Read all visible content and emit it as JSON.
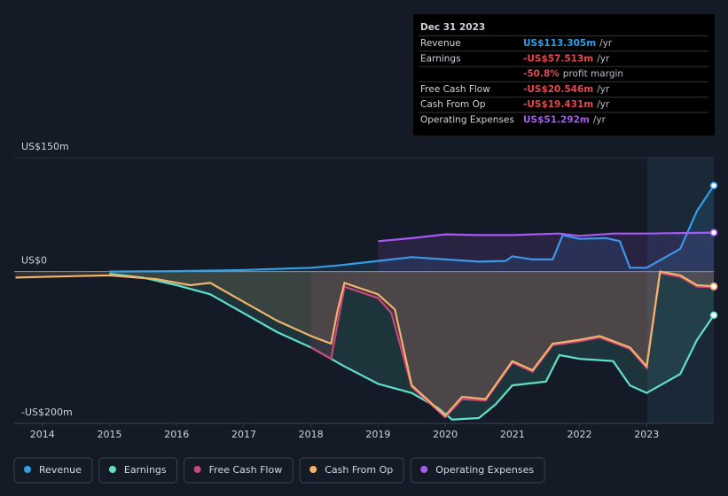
{
  "chart_data": {
    "type": "line",
    "xlim": [
      2013.58,
      2024
    ],
    "xticks": [
      2014,
      2015,
      2016,
      2017,
      2018,
      2019,
      2020,
      2021,
      2022,
      2023
    ],
    "ylim": [
      -200,
      150
    ],
    "yticks": [
      {
        "value": 150,
        "label": "US$150m"
      },
      {
        "value": 0,
        "label": "US$0"
      },
      {
        "value": -200,
        "label": "-US$200m"
      }
    ],
    "grid": true,
    "series": [
      {
        "name": "Revenue",
        "color": "#2f9fe8",
        "x": [
          2015,
          2016,
          2017,
          2018,
          2018.4,
          2019,
          2019.5,
          2020,
          2020.5,
          2020.9,
          2021,
          2021.3,
          2021.6,
          2021.75,
          2022,
          2022.4,
          2022.6,
          2022.75,
          2023,
          2023.5,
          2023.75,
          2024
        ],
        "values": [
          0,
          0.5,
          2,
          5,
          8,
          14,
          19,
          16,
          13,
          14,
          20,
          16,
          16,
          48,
          43,
          44,
          40,
          5,
          5,
          30,
          80,
          113.3
        ]
      },
      {
        "name": "Earnings",
        "color": "#5fe0c8",
        "x": [
          2015,
          2015.5,
          2016,
          2016.5,
          2017,
          2017.5,
          2018,
          2018.5,
          2019,
          2019.5,
          2019.9,
          2020.1,
          2020.5,
          2020.75,
          2021,
          2021.5,
          2021.7,
          2022,
          2022.5,
          2022.75,
          2023,
          2023.5,
          2023.75,
          2024
        ],
        "values": [
          -3,
          -8,
          -18,
          -30,
          -55,
          -80,
          -100,
          -125,
          -148,
          -160,
          -180,
          -195,
          -193,
          -175,
          -150,
          -145,
          -110,
          -115,
          -118,
          -150,
          -160,
          -135,
          -90,
          -57.5
        ]
      },
      {
        "name": "Free Cash Flow",
        "color": "#c9457c",
        "x": [
          2018,
          2018.3,
          2018.5,
          2019,
          2019.2,
          2019.5,
          2020,
          2020.25,
          2020.6,
          2021,
          2021.3,
          2021.6,
          2022,
          2022.3,
          2022.75,
          2023,
          2023.2,
          2023.5,
          2023.75,
          2024
        ],
        "values": [
          -100,
          -115,
          -20,
          -35,
          -55,
          -152,
          -192,
          -168,
          -170,
          -120,
          -132,
          -97,
          -92,
          -87,
          -102,
          -127,
          -2,
          -7,
          -20,
          -20.5
        ]
      },
      {
        "name": "Cash From Op",
        "color": "#f2b36b",
        "x": [
          2013.6,
          2014.5,
          2015,
          2015.7,
          2016.2,
          2016.5,
          2017,
          2017.5,
          2018,
          2018.3,
          2018.4,
          2018.5,
          2019,
          2019.25,
          2019.5,
          2020,
          2020.25,
          2020.6,
          2021,
          2021.3,
          2021.6,
          2022,
          2022.3,
          2022.75,
          2023,
          2023.2,
          2023.5,
          2023.75,
          2024
        ],
        "values": [
          -8,
          -6,
          -5,
          -10,
          -18,
          -15,
          -40,
          -65,
          -85,
          -95,
          -50,
          -15,
          -30,
          -50,
          -150,
          -190,
          -165,
          -168,
          -118,
          -130,
          -95,
          -90,
          -85,
          -100,
          -125,
          0,
          -5,
          -18,
          -19.4
        ]
      },
      {
        "name": "Operating Expenses",
        "color": "#a659f5",
        "x": [
          2019,
          2019.5,
          2020,
          2020.5,
          2021,
          2021.7,
          2022,
          2022.5,
          2023,
          2024
        ],
        "values": [
          40,
          44,
          49,
          48,
          48,
          50,
          47,
          50,
          50,
          51.3
        ]
      }
    ],
    "tooltip": {
      "title": "Dec 31 2023",
      "rows": [
        {
          "label": "Revenue",
          "value": "US$113.305m",
          "unit": "/yr",
          "color": "#2f9fe8"
        },
        {
          "label": "Earnings",
          "value": "-US$57.513m",
          "unit": "/yr",
          "color": "#e5484d"
        },
        {
          "value": "-50.8%",
          "unit": "profit margin",
          "color": "#e5484d"
        },
        {
          "label": "Free Cash Flow",
          "value": "-US$20.546m",
          "unit": "/yr",
          "color": "#e5484d"
        },
        {
          "label": "Cash From Op",
          "value": "-US$19.431m",
          "unit": "/yr",
          "color": "#e5484d"
        },
        {
          "label": "Operating Expenses",
          "value": "US$51.292m",
          "unit": "/yr",
          "color": "#a659f5"
        }
      ]
    }
  }
}
